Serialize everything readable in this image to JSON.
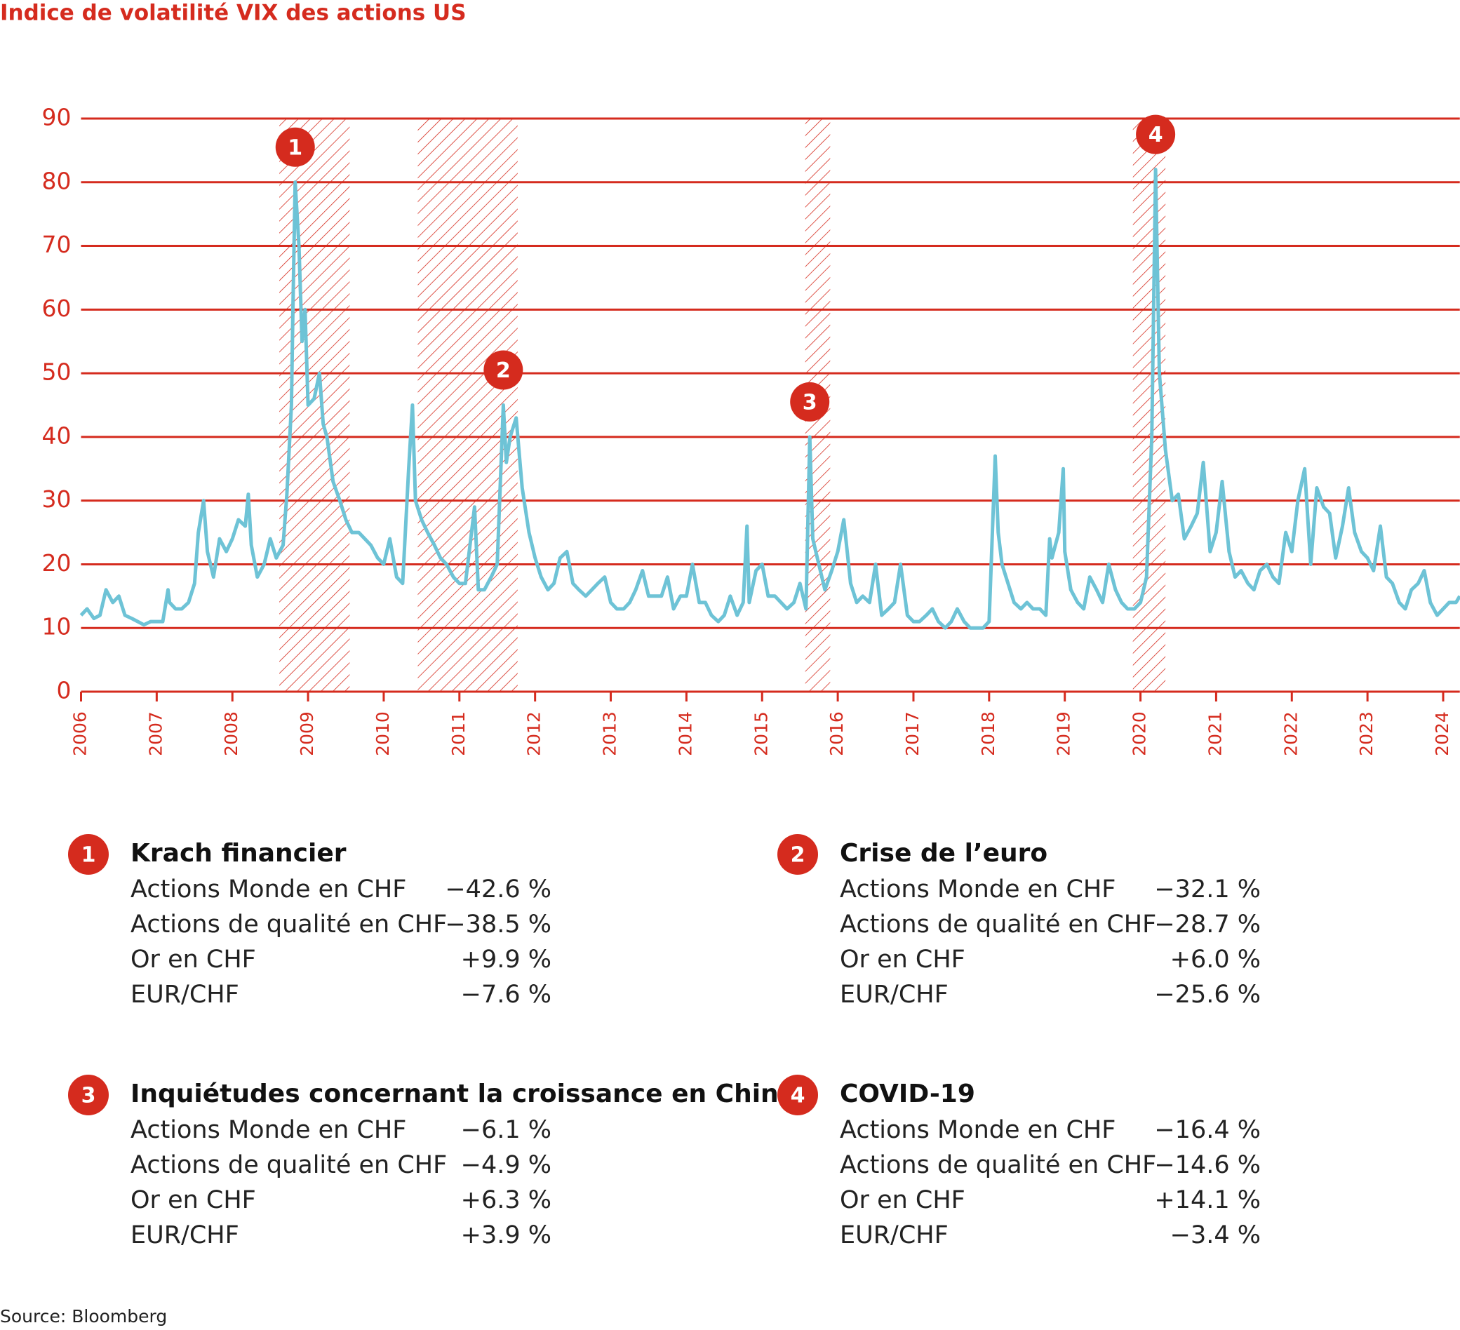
{
  "chart_data": {
    "type": "line",
    "title": "Indice de volatilité VIX des actions US",
    "xlim": [
      2006,
      2024.22
    ],
    "xticks": [
      2006,
      2007,
      2008,
      2009,
      2010,
      2011,
      2012,
      2013,
      2014,
      2015,
      2016,
      2017,
      2018,
      2019,
      2020,
      2021,
      2022,
      2023,
      2024
    ],
    "ylim": [
      0,
      90
    ],
    "yticks": [
      0,
      10,
      20,
      30,
      40,
      50,
      60,
      70,
      80,
      90
    ],
    "grid": true,
    "color": "#6ec3d6",
    "grid_color": "#d52b1e",
    "x": [
      2006.0,
      2006.08,
      2006.17,
      2006.25,
      2006.33,
      2006.42,
      2006.5,
      2006.58,
      2006.67,
      2006.75,
      2006.83,
      2006.92,
      2007.0,
      2007.08,
      2007.15,
      2007.17,
      2007.25,
      2007.33,
      2007.42,
      2007.5,
      2007.55,
      2007.62,
      2007.67,
      2007.75,
      2007.83,
      2007.92,
      2008.0,
      2008.08,
      2008.17,
      2008.21,
      2008.25,
      2008.33,
      2008.42,
      2008.5,
      2008.58,
      2008.67,
      2008.72,
      2008.78,
      2008.8,
      2008.83,
      2008.88,
      2008.92,
      2008.96,
      2009.0,
      2009.08,
      2009.15,
      2009.2,
      2009.25,
      2009.33,
      2009.42,
      2009.5,
      2009.58,
      2009.67,
      2009.75,
      2009.83,
      2009.92,
      2010.0,
      2010.08,
      2010.17,
      2010.25,
      2010.33,
      2010.38,
      2010.42,
      2010.5,
      2010.58,
      2010.67,
      2010.75,
      2010.83,
      2010.92,
      2011.0,
      2011.08,
      2011.2,
      2011.25,
      2011.33,
      2011.42,
      2011.5,
      2011.58,
      2011.62,
      2011.67,
      2011.75,
      2011.83,
      2011.92,
      2012.0,
      2012.08,
      2012.17,
      2012.25,
      2012.33,
      2012.42,
      2012.5,
      2012.58,
      2012.67,
      2012.75,
      2012.83,
      2012.92,
      2013.0,
      2013.08,
      2013.17,
      2013.25,
      2013.33,
      2013.42,
      2013.5,
      2013.58,
      2013.67,
      2013.75,
      2013.83,
      2013.92,
      2014.0,
      2014.08,
      2014.17,
      2014.25,
      2014.33,
      2014.42,
      2014.5,
      2014.58,
      2014.67,
      2014.75,
      2014.8,
      2014.83,
      2014.92,
      2015.0,
      2015.08,
      2015.17,
      2015.25,
      2015.33,
      2015.42,
      2015.5,
      2015.58,
      2015.63,
      2015.67,
      2015.75,
      2015.83,
      2015.92,
      2016.0,
      2016.08,
      2016.17,
      2016.25,
      2016.33,
      2016.42,
      2016.5,
      2016.58,
      2016.67,
      2016.75,
      2016.83,
      2016.92,
      2017.0,
      2017.08,
      2017.17,
      2017.25,
      2017.33,
      2017.42,
      2017.5,
      2017.58,
      2017.67,
      2017.75,
      2017.83,
      2017.92,
      2018.0,
      2018.08,
      2018.12,
      2018.17,
      2018.25,
      2018.33,
      2018.42,
      2018.5,
      2018.58,
      2018.67,
      2018.75,
      2018.8,
      2018.83,
      2018.92,
      2018.98,
      2019.0,
      2019.08,
      2019.17,
      2019.25,
      2019.33,
      2019.42,
      2019.5,
      2019.58,
      2019.67,
      2019.75,
      2019.83,
      2019.92,
      2020.0,
      2020.08,
      2020.15,
      2020.2,
      2020.25,
      2020.33,
      2020.42,
      2020.5,
      2020.58,
      2020.67,
      2020.75,
      2020.83,
      2020.92,
      2021.0,
      2021.08,
      2021.17,
      2021.25,
      2021.33,
      2021.42,
      2021.5,
      2021.58,
      2021.67,
      2021.75,
      2021.83,
      2021.92,
      2022.0,
      2022.08,
      2022.17,
      2022.25,
      2022.33,
      2022.42,
      2022.5,
      2022.58,
      2022.67,
      2022.75,
      2022.83,
      2022.92,
      2023.0,
      2023.08,
      2023.17,
      2023.25,
      2023.33,
      2023.42,
      2023.5,
      2023.58,
      2023.67,
      2023.75,
      2023.83,
      2023.92,
      2024.0,
      2024.08,
      2024.17,
      2024.22
    ],
    "values": [
      12,
      13,
      11.5,
      12,
      16,
      14,
      15,
      12,
      11.5,
      11,
      10.5,
      11,
      11,
      11,
      16,
      14,
      13,
      13,
      14,
      17,
      25,
      30,
      22,
      18,
      24,
      22,
      24,
      27,
      26,
      31,
      23,
      18,
      20,
      24,
      21,
      23,
      31,
      45,
      60,
      80,
      70,
      55,
      60,
      45,
      46,
      50,
      42,
      40,
      33,
      30,
      27,
      25,
      25,
      24,
      23,
      21,
      20,
      24,
      18,
      17,
      35,
      45,
      30,
      27,
      25,
      23,
      21,
      20,
      18,
      17,
      17,
      29,
      16,
      16,
      18,
      20,
      45,
      36,
      40,
      43,
      32,
      25,
      21,
      18,
      16,
      17,
      21,
      22,
      17,
      16,
      15,
      16,
      17,
      18,
      14,
      13,
      13,
      14,
      16,
      19,
      15,
      15,
      15,
      18,
      13,
      15,
      15,
      20,
      14,
      14,
      12,
      11,
      12,
      15,
      12,
      14,
      26,
      14,
      19,
      20,
      15,
      15,
      14,
      13,
      14,
      17,
      13,
      40,
      24,
      20,
      16,
      19,
      22,
      27,
      17,
      14,
      15,
      14,
      20,
      12,
      13,
      14,
      20,
      12,
      11,
      11,
      12,
      13,
      11,
      10,
      11,
      13,
      11,
      10,
      10,
      10,
      11,
      37,
      25,
      20,
      17,
      14,
      13,
      14,
      13,
      13,
      12,
      24,
      21,
      25,
      35,
      22,
      16,
      14,
      13,
      18,
      16,
      14,
      20,
      16,
      14,
      13,
      13,
      14,
      18,
      40,
      82,
      50,
      38,
      30,
      31,
      24,
      26,
      28,
      36,
      22,
      25,
      33,
      22,
      18,
      19,
      17,
      16,
      19,
      20,
      18,
      17,
      25,
      22,
      30,
      35,
      20,
      32,
      29,
      28,
      21,
      26,
      32,
      25,
      22,
      21,
      19,
      26,
      18,
      17,
      14,
      13,
      16,
      17,
      19,
      14,
      12,
      13,
      14,
      14,
      15
    ],
    "events": [
      {
        "label": "1",
        "start": 2008.62,
        "end": 2009.55
      },
      {
        "label": "2",
        "start": 2010.45,
        "end": 2011.77
      },
      {
        "label": "3",
        "start": 2015.57,
        "end": 2015.9
      },
      {
        "label": "4",
        "start": 2019.9,
        "end": 2020.33
      }
    ]
  },
  "panels": [
    {
      "number": "1",
      "title": "Krach financier",
      "rows": [
        [
          "Actions Monde en CHF",
          "−42.6 %"
        ],
        [
          "Actions de qualité en CHF",
          "−38.5 %"
        ],
        [
          "Or en CHF",
          "+9.9 %"
        ],
        [
          "EUR/CHF",
          "−7.6 %"
        ]
      ]
    },
    {
      "number": "2",
      "title": "Crise de l’euro",
      "rows": [
        [
          "Actions Monde en CHF",
          "−32.1 %"
        ],
        [
          "Actions de qualité en CHF",
          "−28.7 %"
        ],
        [
          "Or en CHF",
          "+6.0 %"
        ],
        [
          "EUR/CHF",
          "−25.6 %"
        ]
      ]
    },
    {
      "number": "3",
      "title": "Inquiétudes concernant la croissance en Chine",
      "rows": [
        [
          "Actions Monde en CHF",
          "−6.1 %"
        ],
        [
          "Actions de qualité en CHF",
          "−4.9 %"
        ],
        [
          "Or en CHF",
          "+6.3 %"
        ],
        [
          "EUR/CHF",
          "+3.9 %"
        ]
      ]
    },
    {
      "number": "4",
      "title": "COVID-19",
      "rows": [
        [
          "Actions Monde en CHF",
          "−16.4 %"
        ],
        [
          "Actions de qualité en CHF",
          "−14.6 %"
        ],
        [
          "Or en CHF",
          "+14.1 %"
        ],
        [
          "EUR/CHF",
          "−3.4 %"
        ]
      ]
    }
  ],
  "source": "Source: Bloomberg"
}
